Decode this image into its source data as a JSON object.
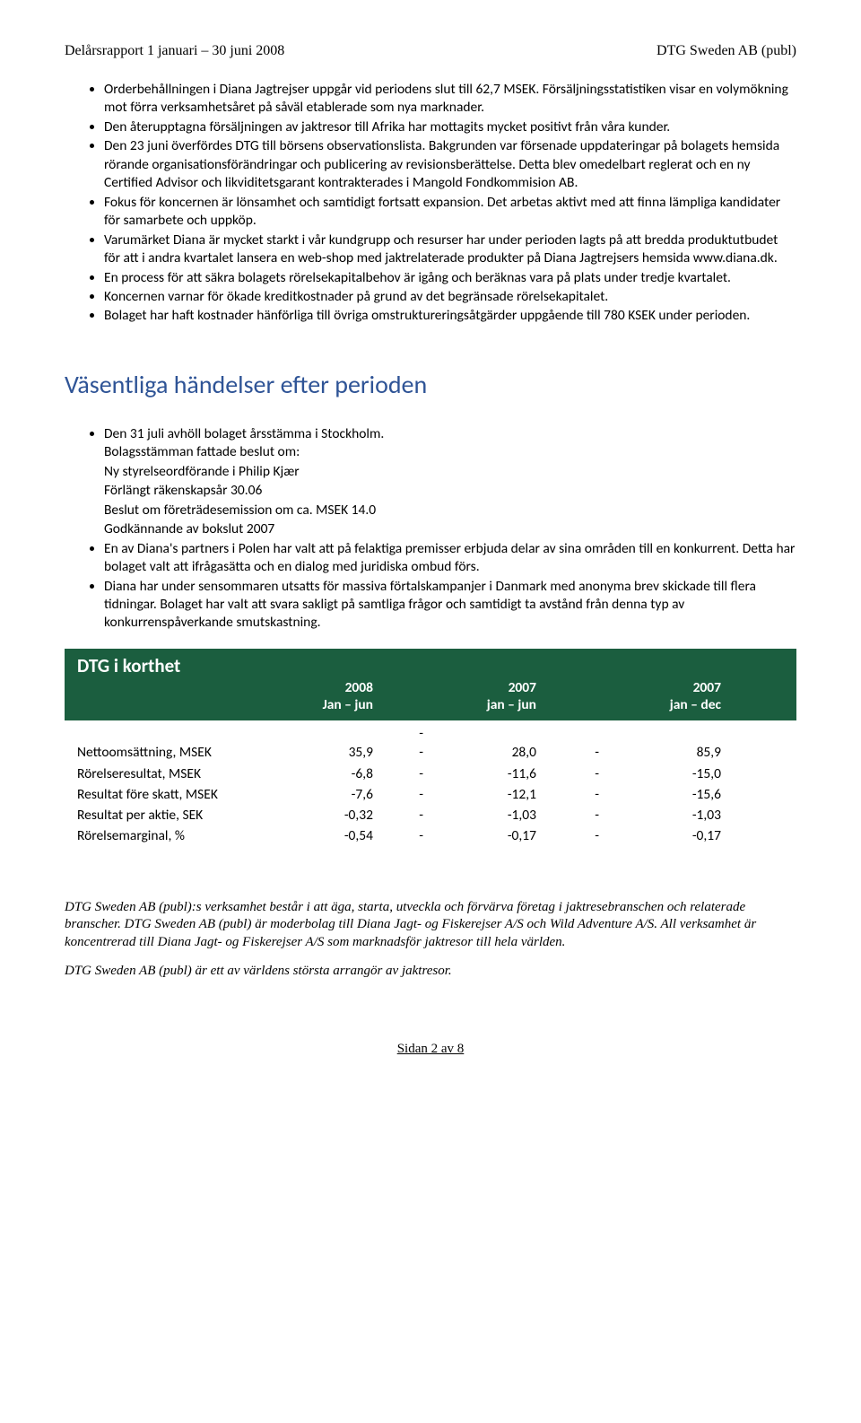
{
  "header": {
    "left": "Delårsrapport 1 januari – 30 juni 2008",
    "right": "DTG Sweden AB (publ)"
  },
  "bullets1": [
    "Orderbehållningen i Diana Jagtrejser uppgår vid periodens slut till 62,7 MSEK.  Försäljningsstatistiken visar en volymökning mot förra verksamhetsåret på såväl etablerade som nya marknader.",
    "Den återupptagna försäljningen av jaktresor till Afrika har mottagits mycket positivt från våra kunder.",
    "Den 23 juni överfördes DTG till börsens observationslista. Bakgrunden var försenade uppdateringar på bolagets hemsida rörande organisationsförändringar och publicering av revisionsberättelse. Detta blev omedelbart reglerat och en ny Certified Advisor och likviditetsgarant kontrakterades i Mangold Fondkommision AB.",
    "Fokus för koncernen är lönsamhet och samtidigt fortsatt expansion. Det arbetas aktivt med att finna lämpliga kandidater för samarbete och uppköp.",
    "Varumärket Diana är mycket starkt i vår kundgrupp och resurser har under perioden lagts på att bredda produktutbudet för att i andra kvartalet lansera en web-shop med jaktrelaterade produkter på Diana Jagtrejsers hemsida www.diana.dk.",
    "En process för att säkra bolagets rörelsekapitalbehov är igång och beräknas vara på plats under tredje kvartalet.",
    "Koncernen varnar för ökade kreditkostnader på grund av det begränsade rörelsekapitalet.",
    "Bolaget har haft kostnader hänförliga till övriga omstruktureringsåtgärder uppgående till 780 KSEK under perioden."
  ],
  "section2_title": "Väsentliga händelser efter perioden",
  "bullets2": [
    {
      "text": "Den 31 juli avhöll bolaget årsstämma i Stockholm.",
      "subs": [
        "Bolagsstämman fattade beslut om:",
        "Ny styrelseordförande i Philip Kjær",
        "Förlängt räkenskapsår 30.06",
        "Beslut om företrädesemission om ca. MSEK 14.0",
        "Godkännande av bokslut 2007"
      ]
    },
    {
      "text": "En av Diana's partners i Polen har valt att på felaktiga premisser erbjuda delar av sina områden till en konkurrent. Detta har bolaget valt att ifrågasätta och en dialog med juridiska ombud förs.",
      "subs": []
    },
    {
      "text": "Diana har under sensommaren utsatts för massiva förtalskampanjer i Danmark med anonyma brev skickade till flera tidningar. Bolaget har valt att svara sakligt på samtliga frågor och samtidigt ta avstånd från denna typ av konkurrenspåverkande smutskastning.",
      "subs": []
    }
  ],
  "table": {
    "title": "DTG i korthet",
    "col1_year": "2008",
    "col1_period": "Jan – jun",
    "col2_year": "2007",
    "col2_period": "jan – jun",
    "col3_year": "2007",
    "col3_period": "jan – dec",
    "rows": [
      {
        "label": "Nettoomsättning, MSEK",
        "v1": "35,9",
        "d1": "-",
        "v2": "28,0",
        "d2": "-",
        "v3": "85,9"
      },
      {
        "label": "Rörelseresultat, MSEK",
        "v1": "-6,8",
        "d1": "-",
        "v2": "-11,6",
        "d2": "-",
        "v3": "-15,0"
      },
      {
        "label": "Resultat före skatt, MSEK",
        "v1": "-7,6",
        "d1": "-",
        "v2": "-12,1",
        "d2": "-",
        "v3": "-15,6"
      },
      {
        "label": "Resultat per aktie, SEK",
        "v1": "-0,32",
        "d1": "-",
        "v2": "-1,03",
        "d2": "-",
        "v3": "-1,03"
      },
      {
        "label": "Rörelsemarginal, %",
        "v1": "-0,54",
        "d1": "-",
        "v2": "-0,17",
        "d2": "-",
        "v3": "-0,17"
      }
    ],
    "extra_dash": "-"
  },
  "footnote1": "DTG Sweden AB (publ):s verksamhet består i att äga, starta, utveckla och förvärva företag i jaktresebranschen och relaterade branscher. DTG Sweden AB (publ) är moderbolag till Diana Jagt- og Fiskerejser A/S och Wild Adventure A/S. All verksamhet är koncentrerad till Diana Jagt- og Fiskerejser A/S som marknadsför jaktresor till hela världen.",
  "footnote2": "DTG Sweden AB (publ) är ett av världens största arrangör av jaktresor.",
  "page_num": "Sidan 2 av 8"
}
